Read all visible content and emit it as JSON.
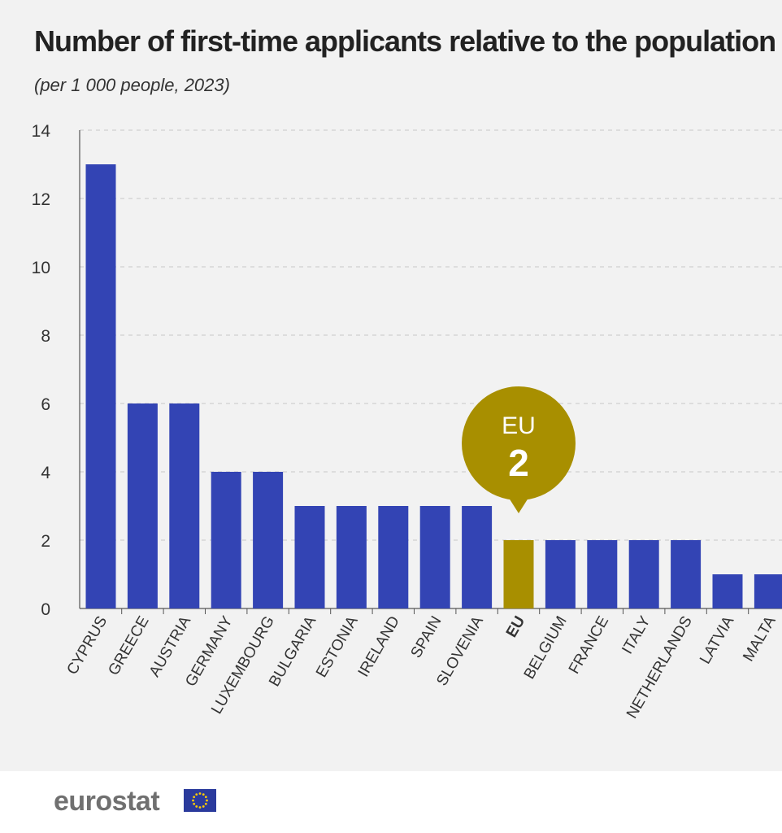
{
  "chart_data": {
    "type": "bar",
    "title": "Number of first-time applicants relative to the population",
    "subtitle": "(per 1 000 people, 2023)",
    "xlabel": "",
    "ylabel": "",
    "ylim": [
      0,
      14
    ],
    "yticks": [
      0,
      2,
      4,
      6,
      8,
      10,
      12,
      14
    ],
    "grid": true,
    "categories": [
      "CYPRUS",
      "GREECE",
      "AUSTRIA",
      "GERMANY",
      "LUXEMBOURG",
      "BULGARIA",
      "ESTONIA",
      "IRELAND",
      "SPAIN",
      "SLOVENIA",
      "EU",
      "BELGIUM",
      "FRANCE",
      "ITALY",
      "NETHERLANDS",
      "LATVIA",
      "MALTA"
    ],
    "values": [
      13,
      6,
      6,
      4,
      4,
      3,
      3,
      3,
      3,
      3,
      2,
      2,
      2,
      2,
      2,
      1,
      1
    ],
    "highlight": "EU",
    "callout": {
      "label": "EU",
      "value": "2"
    }
  },
  "colors": {
    "bar": "#3344b4",
    "highlight": "#a88f00",
    "grid": "#c8c8c8",
    "axis": "#555555"
  },
  "footer": {
    "brand": "eurostat",
    "logo": "eu-flag-icon"
  }
}
